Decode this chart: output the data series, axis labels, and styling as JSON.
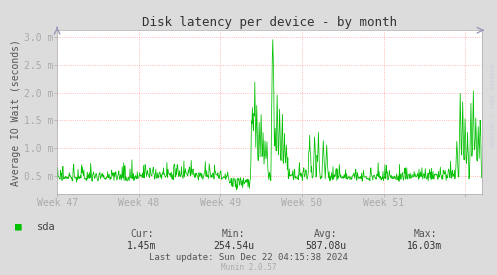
{
  "title": "Disk latency per device - by month",
  "ylabel": "Average IO Wait (seconds)",
  "bg_color": "#dcdcdc",
  "plot_bg_color": "#ffffff",
  "grid_color": "#ff8080",
  "line_color": "#00c000",
  "x_ticks": [
    0,
    168,
    336,
    504,
    672,
    840
  ],
  "x_tick_labels": [
    "Week 47",
    "Week 48",
    "Week 49",
    "Week 50",
    "Week 51",
    ""
  ],
  "y_ticks": [
    0.0005,
    0.001,
    0.0015,
    0.002,
    0.0025,
    0.003
  ],
  "y_tick_labels": [
    "0.5 m",
    "1.0 m",
    "1.5 m",
    "2.0 m",
    "2.5 m",
    "3.0 m"
  ],
  "ylim": [
    0.00018,
    0.00312
  ],
  "xlim": [
    0,
    875
  ],
  "legend_label": "sda",
  "legend_color": "#00c000",
  "cur_label": "Cur:",
  "cur_value": "1.45m",
  "min_label": "Min:",
  "min_value": "254.54u",
  "avg_label": "Avg:",
  "avg_value": "587.08u",
  "max_label": "Max:",
  "max_value": "16.03m",
  "last_update": "Last update: Sun Dec 22 04:15:38 2024",
  "munin_version": "Munin 2.0.57",
  "rrdtool_label": "RRDTOOL / TOBI OETIKER",
  "title_fontsize": 9,
  "axis_label_fontsize": 7,
  "tick_fontsize": 7,
  "legend_fontsize": 7.5,
  "stats_label_fontsize": 7,
  "stats_value_fontsize": 7
}
